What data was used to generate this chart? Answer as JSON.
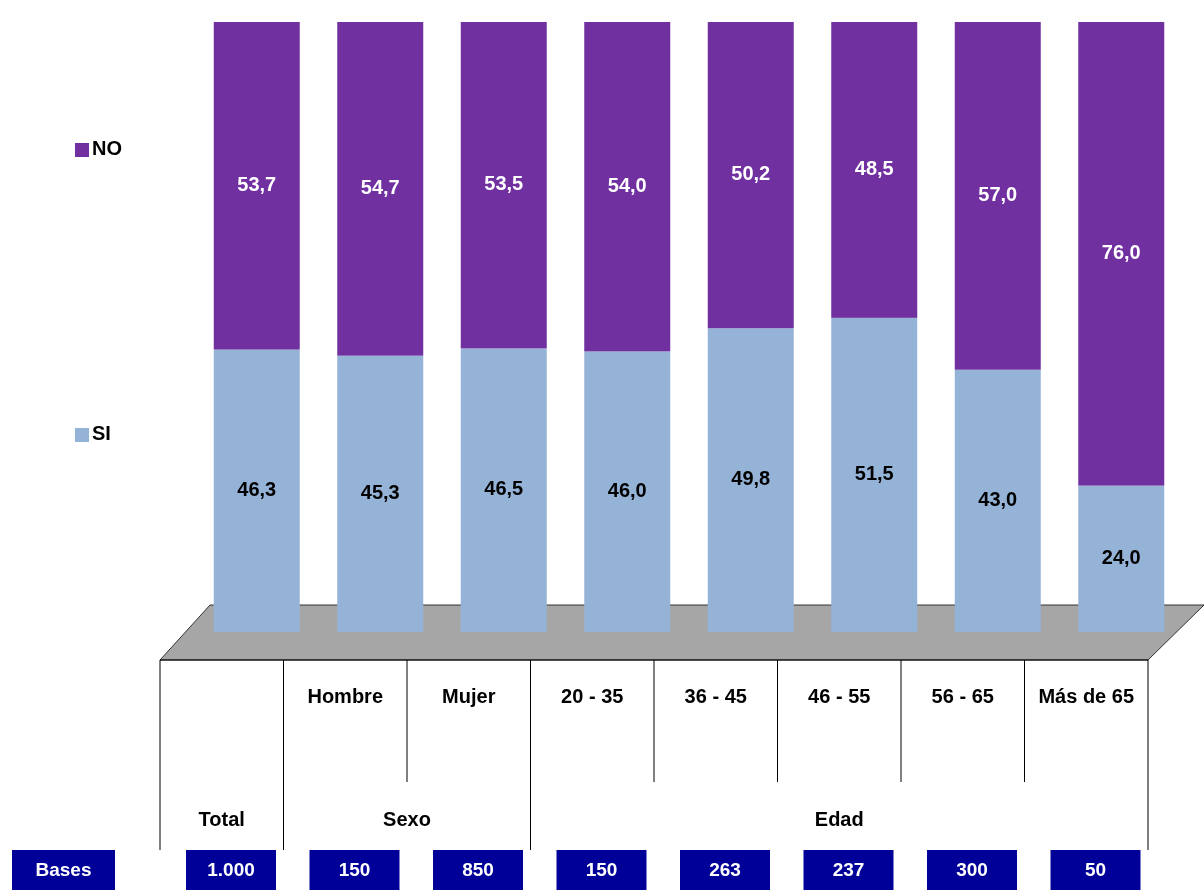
{
  "chart_data": {
    "type": "bar",
    "stacked": true,
    "legend": "left",
    "categories": [
      null,
      "Hombre",
      "Mujer",
      "20 - 35",
      "36 - 45",
      "46 - 55",
      "56 - 65",
      "Más de 65"
    ],
    "series": [
      {
        "name": "SI",
        "color": "#95b3d7",
        "values": [
          46.3,
          45.3,
          46.5,
          46.0,
          49.8,
          51.5,
          43.0,
          24.0
        ],
        "value_labels": [
          "46,3",
          "45,3",
          "46,5",
          "46,0",
          "49,8",
          "51,5",
          "43,0",
          "24,0"
        ]
      },
      {
        "name": "NO",
        "color": "#7030a0",
        "values": [
          53.7,
          54.7,
          53.5,
          54.0,
          50.2,
          48.5,
          57.0,
          76.0
        ],
        "value_labels": [
          "53,7",
          "54,7",
          "53,5",
          "54,0",
          "50,2",
          "48,5",
          "57,0",
          "76,0"
        ]
      }
    ],
    "annotations": [
      "Total",
      "Sexo",
      "Edad",
      "Bases",
      "1.000",
      "150",
      "850",
      "150",
      "263",
      "237",
      "300",
      "50"
    ]
  }
}
